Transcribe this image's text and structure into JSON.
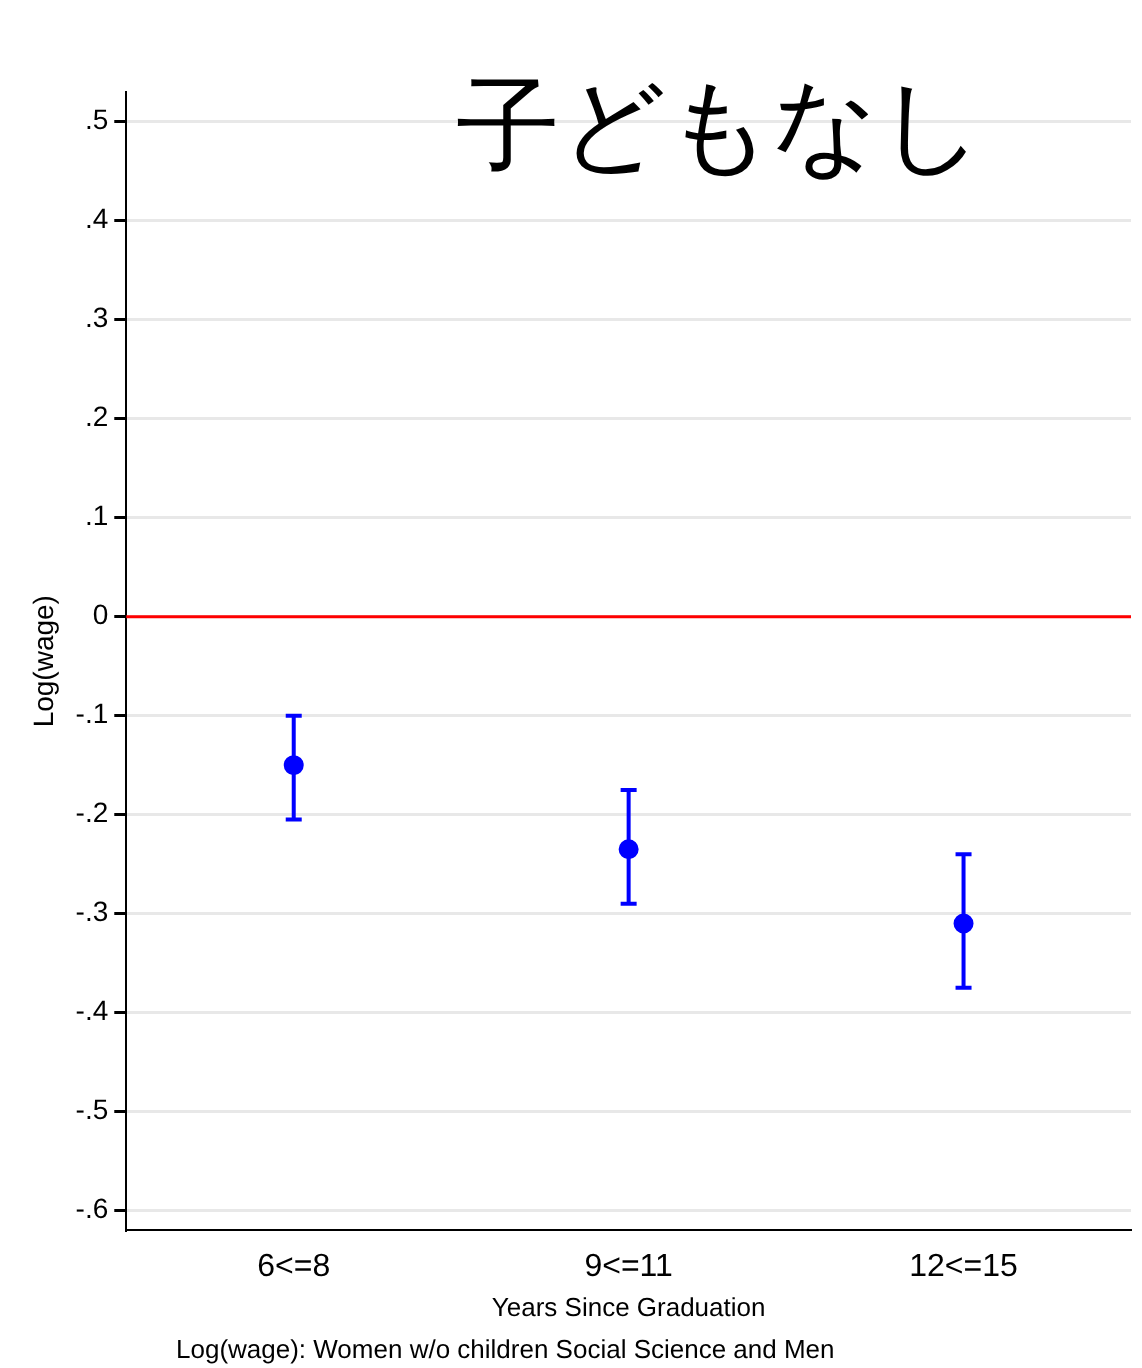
{
  "chart_data": {
    "type": "scatter",
    "title": "子どもなし",
    "xlabel": "Years Since Graduation",
    "ylabel": "Log(wage)",
    "annotations": [
      "Log(wage): Women w/o children Social Science and Men"
    ],
    "categories": [
      "6<=8",
      "9<=11",
      "12<=15"
    ],
    "series": [
      {
        "color": "#0000ff",
        "values": [
          -0.15,
          -0.235,
          -0.31
        ],
        "errors": [
          [
            -0.205,
            -0.1
          ],
          [
            -0.29,
            -0.175
          ],
          [
            -0.375,
            -0.24
          ]
        ]
      }
    ],
    "ylim": [
      -0.62,
      0.53
    ],
    "yticks": [
      {
        "value": 0.5,
        "label": ".5"
      },
      {
        "value": 0.4,
        "label": ".4"
      },
      {
        "value": 0.3,
        "label": ".3"
      },
      {
        "value": 0.2,
        "label": ".2"
      },
      {
        "value": 0.1,
        "label": ".1"
      },
      0,
      {
        "value": -0.1,
        "label": "-.1"
      },
      {
        "value": -0.2,
        "label": "-.2"
      },
      {
        "value": -0.3,
        "label": "-.3"
      },
      {
        "value": -0.4,
        "label": "-.4"
      },
      {
        "value": -0.5,
        "label": "-.5"
      },
      {
        "value": -0.6,
        "label": "-.6"
      }
    ],
    "ref_lines": [
      {
        "axis": "y",
        "value": 0,
        "color": "#ff0000"
      }
    ],
    "grid": "y",
    "legend": false,
    "marker": "circle"
  }
}
